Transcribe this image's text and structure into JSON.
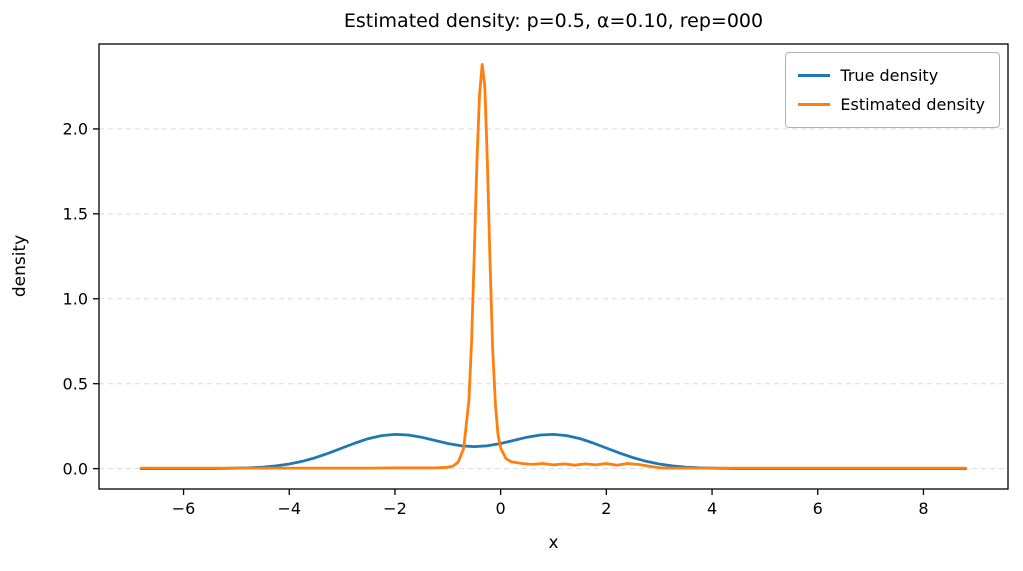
{
  "chart_data": {
    "type": "line",
    "title": "Estimated density: p=0.5, α=0.10, rep=000",
    "xlabel": "x",
    "ylabel": "density",
    "xlim": [
      -7.6,
      9.6
    ],
    "ylim": [
      -0.12,
      2.5
    ],
    "xticks": [
      -6,
      -4,
      -2,
      0,
      2,
      4,
      6,
      8
    ],
    "xtick_labels": [
      "−6",
      "−4",
      "−2",
      "0",
      "2",
      "4",
      "6",
      "8"
    ],
    "yticks": [
      0.0,
      0.5,
      1.0,
      1.5,
      2.0
    ],
    "ytick_labels": [
      "0.0",
      "0.5",
      "1.0",
      "1.5",
      "2.0"
    ],
    "grid": "horizontal-dashed",
    "grid_color": "#d9d9d9",
    "legend_position": "upper-right",
    "series": [
      {
        "name": "True density",
        "color": "#1f77b4",
        "x": [
          -6.8,
          -6,
          -5.5,
          -5,
          -4.75,
          -4.5,
          -4.25,
          -4,
          -3.75,
          -3.5,
          -3.25,
          -3,
          -2.75,
          -2.5,
          -2.25,
          -2,
          -1.75,
          -1.5,
          -1.25,
          -1,
          -0.75,
          -0.5,
          -0.25,
          0,
          0.25,
          0.5,
          0.75,
          1,
          1.25,
          1.5,
          1.75,
          2,
          2.25,
          2.5,
          2.75,
          3,
          3.25,
          3.5,
          3.75,
          4,
          4.5,
          5,
          6,
          7,
          8,
          8.8
        ],
        "y": [
          0,
          0.0001,
          0.0004,
          0.0022,
          0.0046,
          0.0088,
          0.0159,
          0.027,
          0.0432,
          0.0648,
          0.0914,
          0.1211,
          0.1507,
          0.1765,
          0.1944,
          0.2017,
          0.1979,
          0.1848,
          0.1664,
          0.148,
          0.1345,
          0.1295,
          0.1345,
          0.148,
          0.1664,
          0.1848,
          0.1979,
          0.2017,
          0.1944,
          0.1765,
          0.1507,
          0.1211,
          0.0914,
          0.0648,
          0.0432,
          0.027,
          0.0159,
          0.0088,
          0.0046,
          0.0022,
          0.0004,
          0.0001,
          0,
          0,
          0,
          0
        ]
      },
      {
        "name": "Estimated density",
        "color": "#ff7f0e",
        "x": [
          -6.8,
          -6,
          -5,
          -4,
          -3,
          -2.5,
          -2,
          -1.5,
          -1.2,
          -1,
          -0.9,
          -0.8,
          -0.7,
          -0.6,
          -0.55,
          -0.5,
          -0.45,
          -0.4,
          -0.35,
          -0.3,
          -0.25,
          -0.2,
          -0.15,
          -0.1,
          -0.05,
          0,
          0.1,
          0.2,
          0.4,
          0.6,
          0.8,
          1,
          1.2,
          1.4,
          1.6,
          1.8,
          2,
          2.2,
          2.4,
          2.6,
          2.8,
          3,
          3.2,
          3.5,
          4,
          5,
          6,
          7,
          8,
          8.8
        ],
        "y": [
          0.003,
          0.003,
          0.003,
          0.003,
          0.003,
          0.003,
          0.004,
          0.004,
          0.005,
          0.008,
          0.015,
          0.04,
          0.12,
          0.4,
          0.75,
          1.25,
          1.8,
          2.2,
          2.38,
          2.25,
          1.8,
          1.2,
          0.7,
          0.38,
          0.2,
          0.12,
          0.06,
          0.04,
          0.03,
          0.025,
          0.03,
          0.022,
          0.028,
          0.02,
          0.028,
          0.022,
          0.03,
          0.02,
          0.03,
          0.025,
          0.015,
          0.005,
          0.003,
          0.003,
          0.003,
          0.003,
          0.003,
          0.003,
          0.003,
          0.003
        ]
      }
    ]
  }
}
